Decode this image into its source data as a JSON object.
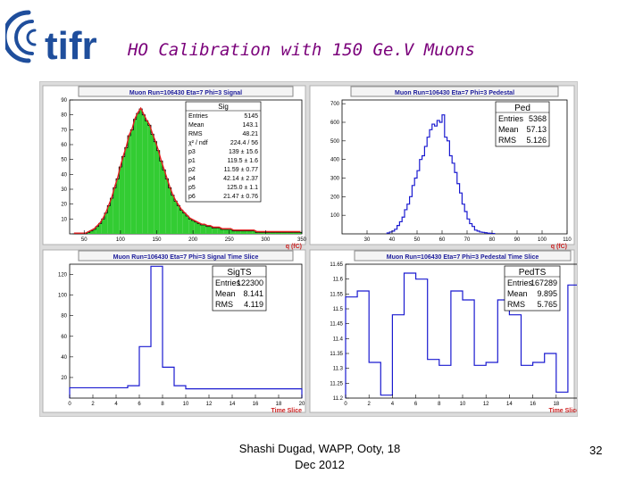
{
  "slide": {
    "title": "HO Calibration with 150 Ge.V Muons",
    "footer_line1": "Shashi Dugad, WAPP, Ooty, 18",
    "footer_line2": "Dec 2012",
    "page_number": "32",
    "logo_text": "tifr",
    "logo_color": "#1f4e9c",
    "title_color": "#7a007a"
  },
  "chart_data": [
    {
      "type": "bar",
      "title": "Muon Run=106430 Eta=7 Phi=3 Signal",
      "xlabel": "q (fC)",
      "ylabel": "",
      "xlim": [
        30,
        350
      ],
      "ylim": [
        0,
        90
      ],
      "xticks": [
        50,
        100,
        150,
        200,
        250,
        300,
        350
      ],
      "yticks": [
        10,
        20,
        30,
        40,
        50,
        60,
        70,
        80,
        90
      ],
      "grid": false,
      "fill_color": "#33cc33",
      "fit": true,
      "stats_title": "Sig",
      "stats": [
        {
          "label": "Entries",
          "value": "5145"
        },
        {
          "label": "Mean",
          "value": "143.1"
        },
        {
          "label": "RMS",
          "value": "48.21"
        },
        {
          "label": "χ² / ndf",
          "value": "224.4 / 56"
        },
        {
          "label": "p3",
          "value": "139 ± 15.6"
        },
        {
          "label": "p1",
          "value": "119.5 ± 1.6"
        },
        {
          "label": "p2",
          "value": "11.59 ± 0.77"
        },
        {
          "label": "p4",
          "value": "42.14 ± 2.37"
        },
        {
          "label": "p5",
          "value": "125.0 ± 1.1"
        },
        {
          "label": "p6",
          "value": "21.47 ± 0.76"
        }
      ],
      "bin_width": 4,
      "x": [
        34,
        38,
        42,
        46,
        50,
        54,
        58,
        62,
        66,
        70,
        74,
        78,
        82,
        86,
        90,
        94,
        98,
        102,
        106,
        110,
        114,
        118,
        122,
        126,
        130,
        134,
        138,
        142,
        146,
        150,
        154,
        158,
        162,
        166,
        170,
        174,
        178,
        182,
        186,
        190,
        194,
        198,
        202,
        206,
        210,
        214,
        218,
        222,
        226,
        230,
        234,
        238,
        242,
        246,
        250,
        254,
        258,
        262,
        266,
        270,
        274,
        278,
        282,
        286,
        290,
        294,
        298,
        302,
        306,
        310,
        314,
        318,
        322,
        326,
        330,
        334,
        338,
        342,
        346
      ],
      "values": [
        0,
        0,
        0,
        0,
        0,
        1,
        2,
        3,
        5,
        7,
        10,
        14,
        19,
        24,
        31,
        37,
        45,
        52,
        58,
        66,
        70,
        77,
        81,
        84,
        80,
        76,
        73,
        67,
        62,
        56,
        49,
        43,
        37,
        31,
        26,
        22,
        19,
        16,
        14,
        12,
        10,
        9,
        8,
        7,
        6,
        6,
        5,
        5,
        4,
        4,
        4,
        3,
        3,
        3,
        3,
        2,
        2,
        2,
        2,
        2,
        2,
        2,
        2,
        1,
        1,
        1,
        1,
        1,
        1,
        1,
        1,
        1,
        1,
        1,
        1,
        1,
        1,
        1,
        1
      ]
    },
    {
      "type": "bar",
      "title": "Muon Run=106430 Eta=7 Phi=3 Pedestal",
      "xlabel": "q (fC)",
      "ylabel": "",
      "xlim": [
        20,
        110
      ],
      "ylim": [
        0,
        720
      ],
      "xticks": [
        30,
        40,
        50,
        60,
        70,
        80,
        90,
        100,
        110
      ],
      "yticks": [
        100,
        200,
        300,
        400,
        500,
        600,
        700
      ],
      "grid": false,
      "stats_title": "Ped",
      "stats": [
        {
          "label": "Entries",
          "value": "5368"
        },
        {
          "label": "Mean",
          "value": "57.13"
        },
        {
          "label": "RMS",
          "value": "5.126"
        }
      ],
      "bin_width": 1,
      "x": [
        38,
        39,
        40,
        41,
        42,
        43,
        44,
        45,
        46,
        47,
        48,
        49,
        50,
        51,
        52,
        53,
        54,
        55,
        56,
        57,
        58,
        59,
        60,
        61,
        62,
        63,
        64,
        65,
        66,
        67,
        68,
        69,
        70,
        71,
        72,
        73,
        74,
        75,
        76,
        77,
        78,
        79,
        80
      ],
      "values": [
        5,
        10,
        15,
        25,
        45,
        65,
        90,
        130,
        160,
        200,
        260,
        300,
        340,
        400,
        420,
        470,
        520,
        560,
        590,
        580,
        610,
        600,
        640,
        520,
        500,
        420,
        380,
        330,
        270,
        220,
        160,
        120,
        80,
        55,
        40,
        20,
        15,
        10,
        8,
        6,
        4,
        3,
        2
      ]
    },
    {
      "type": "bar",
      "title": "Muon Run=106430 Eta=7 Phi=3 Signal Time Slice",
      "xlabel": "Time Slice",
      "ylabel": "",
      "xlim": [
        0,
        20
      ],
      "ylim": [
        0,
        130
      ],
      "xticks": [
        0,
        2,
        4,
        6,
        8,
        10,
        12,
        14,
        16,
        18,
        20
      ],
      "yticks": [
        20,
        40,
        60,
        80,
        100,
        120
      ],
      "grid": false,
      "stats_title": "SigTS",
      "stats": [
        {
          "label": "Entries",
          "value": "122300"
        },
        {
          "label": "Mean",
          "value": "8.141"
        },
        {
          "label": "RMS",
          "value": "4.119"
        }
      ],
      "bin_width": 1,
      "x": [
        0,
        1,
        2,
        3,
        4,
        5,
        6,
        7,
        8,
        9,
        10,
        11,
        12,
        13,
        14,
        15,
        16,
        17,
        18,
        19
      ],
      "values": [
        10,
        10,
        10,
        10,
        10,
        12,
        50,
        128,
        30,
        12,
        9,
        9,
        9,
        9,
        9,
        9,
        9,
        9,
        9,
        9
      ]
    },
    {
      "type": "bar",
      "title": "Muon Run=106430 Eta=7 Phi=3 Pedestal Time Slice",
      "xlabel": "Time Slice",
      "ylabel": "",
      "xlim": [
        0,
        20
      ],
      "ylim": [
        11.2,
        11.65
      ],
      "xticks": [
        0,
        2,
        4,
        6,
        8,
        10,
        12,
        14,
        16,
        18,
        20
      ],
      "yticks": [
        11.2,
        11.25,
        11.3,
        11.35,
        11.4,
        11.45,
        11.5,
        11.55,
        11.6,
        11.65
      ],
      "grid": false,
      "stats_title": "PedTS",
      "stats": [
        {
          "label": "Entries",
          "value": "167289"
        },
        {
          "label": "Mean",
          "value": "9.895"
        },
        {
          "label": "RMS",
          "value": "5.765"
        }
      ],
      "bin_width": 1,
      "x": [
        0,
        1,
        2,
        3,
        4,
        5,
        6,
        7,
        8,
        9,
        10,
        11,
        12,
        13,
        14,
        15,
        16,
        17,
        18,
        19
      ],
      "values": [
        11.54,
        11.56,
        11.32,
        11.21,
        11.48,
        11.62,
        11.6,
        11.33,
        11.31,
        11.56,
        11.53,
        11.31,
        11.32,
        11.53,
        11.48,
        11.31,
        11.32,
        11.35,
        11.22,
        11.58
      ]
    }
  ]
}
